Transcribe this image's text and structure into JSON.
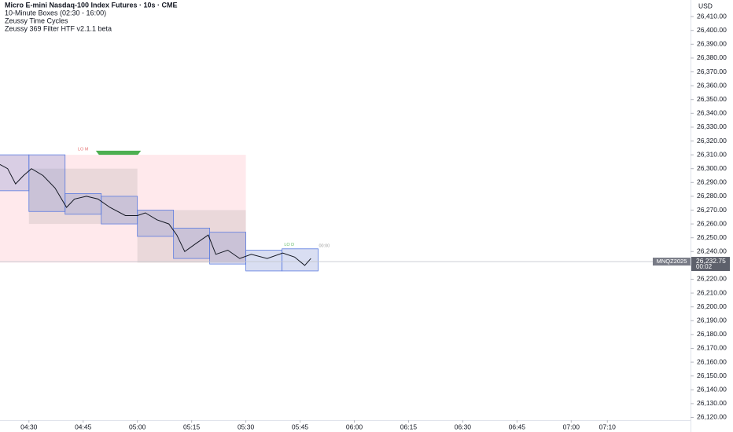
{
  "chart_data": {
    "type": "line",
    "title": "Micro E-mini Nasdaq-100 Index Futures · 10s · CME",
    "indicators": [
      "10-Minute Boxes (02:30 - 16:00)",
      "Zeussy Time Cycles",
      "Zeussy 369 Filter HTF v2.1.1 beta"
    ],
    "currency": "USD",
    "x": [
      262.0,
      264.1,
      266.3,
      268.5,
      270.7,
      273.9,
      277.2,
      280.4,
      282.6,
      285.9,
      289.1,
      292.4,
      296.7,
      300.0,
      302.2,
      305.4,
      308.7,
      310.9,
      313.1,
      316.3,
      319.6,
      321.7,
      325.0,
      328.3,
      331.5,
      335.9,
      340.2,
      343.5,
      346.3,
      348.0
    ],
    "values": [
      26303,
      26300,
      26289,
      26295,
      26300,
      26295,
      26286,
      26272,
      26278,
      26280,
      26278,
      26272,
      26266,
      26266,
      26268,
      26263,
      26260,
      26252,
      26240,
      26246,
      26252,
      26238,
      26241,
      26235,
      26238,
      26235,
      26239,
      26236,
      26230,
      26235
    ],
    "color": "#131722",
    "session_boxes": [
      {
        "start": 260,
        "end": 330,
        "high": 26310,
        "low": 26232,
        "color": "rgba(255,182,193,0.3)"
      },
      {
        "start": 270,
        "end": 300,
        "high": 26300,
        "low": 26260,
        "color": "rgba(150,150,150,0.2)"
      },
      {
        "start": 300,
        "end": 330,
        "high": 26270,
        "low": 26232,
        "color": "rgba(150,150,150,0.2)"
      }
    ],
    "boxes": [
      {
        "start": 260,
        "end": 270,
        "high": 26310,
        "low": 26284
      },
      {
        "start": 270,
        "end": 280,
        "high": 26310,
        "low": 26269
      },
      {
        "start": 280,
        "end": 290,
        "high": 26282,
        "low": 26267
      },
      {
        "start": 290,
        "end": 300,
        "high": 26280,
        "low": 26260
      },
      {
        "start": 300,
        "end": 310,
        "high": 26270,
        "low": 26251
      },
      {
        "start": 310,
        "end": 320,
        "high": 26257,
        "low": 26235
      },
      {
        "start": 320,
        "end": 330,
        "high": 26254,
        "low": 26231
      },
      {
        "start": 330,
        "end": 340,
        "high": 26241,
        "low": 26226
      },
      {
        "start": 340,
        "end": 350,
        "high": 26242,
        "low": 26226
      }
    ],
    "box_color": "#5b7bdf",
    "signal": {
      "x": [
        288.5,
        301
      ],
      "y": [
        26313,
        26310
      ],
      "color": "#4caf50"
    },
    "annotations": [
      {
        "text": "LO M",
        "x": 285,
        "y": 26314,
        "color": "#e57373"
      },
      {
        "text": "LO D",
        "x": 342,
        "y": 26245,
        "color": "#66bb6a"
      },
      {
        "text": "00:00",
        "x": 351.7,
        "y": 26244,
        "color": "#9e9e9e"
      }
    ],
    "last_price": {
      "symbol": "MNQZ2025",
      "value": 26232.75,
      "label": "26,232.75",
      "countdown": "00:02"
    },
    "xlim": [
      262,
      453
    ],
    "xticks": [
      {
        "value": 270,
        "label": "04:30"
      },
      {
        "value": 285,
        "label": "04:45"
      },
      {
        "value": 300,
        "label": "05:00"
      },
      {
        "value": 315,
        "label": "05:15"
      },
      {
        "value": 330,
        "label": "05:30"
      },
      {
        "value": 345,
        "label": "05:45"
      },
      {
        "value": 360,
        "label": "06:00"
      },
      {
        "value": 375,
        "label": "06:15"
      },
      {
        "value": 390,
        "label": "06:30"
      },
      {
        "value": 405,
        "label": "06:45"
      },
      {
        "value": 420,
        "label": "07:00"
      },
      {
        "value": 430,
        "label": "07:10"
      }
    ],
    "ylim": [
      26118,
      26422
    ],
    "yticks": [
      {
        "value": 26120,
        "label": "26,120.00"
      },
      {
        "value": 26130,
        "label": "26,130.00"
      },
      {
        "value": 26140,
        "label": "26,140.00"
      },
      {
        "value": 26150,
        "label": "26,150.00"
      },
      {
        "value": 26160,
        "label": "26,160.00"
      },
      {
        "value": 26170,
        "label": "26,170.00"
      },
      {
        "value": 26180,
        "label": "26,180.00"
      },
      {
        "value": 26190,
        "label": "26,190.00"
      },
      {
        "value": 26200,
        "label": "26,200.00"
      },
      {
        "value": 26210,
        "label": "26,210.00"
      },
      {
        "value": 26220,
        "label": "26,220.00"
      },
      {
        "value": 26230,
        "label": "26,230.00"
      },
      {
        "value": 26240,
        "label": "26,240.00"
      },
      {
        "value": 26250,
        "label": "26,250.00"
      },
      {
        "value": 26260,
        "label": "26,260.00"
      },
      {
        "value": 26270,
        "label": "26,270.00"
      },
      {
        "value": 26280,
        "label": "26,280.00"
      },
      {
        "value": 26290,
        "label": "26,290.00"
      },
      {
        "value": 26300,
        "label": "26,300.00"
      },
      {
        "value": 26310,
        "label": "26,310.00"
      },
      {
        "value": 26320,
        "label": "26,320.00"
      },
      {
        "value": 26330,
        "label": "26,330.00"
      },
      {
        "value": 26340,
        "label": "26,340.00"
      },
      {
        "value": 26350,
        "label": "26,350.00"
      },
      {
        "value": 26360,
        "label": "26,360.00"
      },
      {
        "value": 26370,
        "label": "26,370.00"
      },
      {
        "value": 26380,
        "label": "26,380.00"
      },
      {
        "value": 26390,
        "label": "26,390.00"
      },
      {
        "value": 26400,
        "label": "26,400.00"
      },
      {
        "value": 26410,
        "label": "26,410.00"
      }
    ]
  }
}
